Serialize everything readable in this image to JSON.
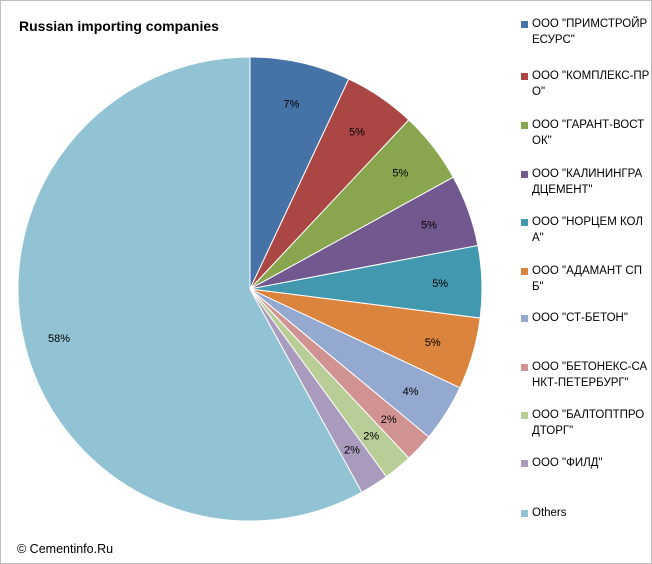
{
  "copyright": "© Cementinfo.Ru",
  "chart_data": {
    "type": "pie",
    "title": "Russian importing companies",
    "legend_position": "right",
    "slices": [
      {
        "name": "ООО \"ПРИМСТРОЙРЕСУРС\"",
        "value": 7,
        "label": "7%",
        "color": "#4572a7"
      },
      {
        "name": "ООО \"КОМПЛЕКС-ПРО\"",
        "value": 5,
        "label": "5%",
        "color": "#aa4643"
      },
      {
        "name": "ООО \"ГАРАНТ-ВОСТОК\"",
        "value": 5,
        "label": "5%",
        "color": "#89a54e"
      },
      {
        "name": "ООО \"КАЛИНИНГРАДЦЕМЕНТ\"",
        "value": 5,
        "label": "5%",
        "color": "#71588f"
      },
      {
        "name": "ООО \"НОРЦЕМ КОЛА\"",
        "value": 5,
        "label": "5%",
        "color": "#4198af"
      },
      {
        "name": "ООО \"АДАМАНТ СПБ\"",
        "value": 5,
        "label": "5%",
        "color": "#db843d"
      },
      {
        "name": "ООО \"СТ-БЕТОН\"",
        "value": 4,
        "label": "4%",
        "color": "#93a9cf"
      },
      {
        "name": "ООО \"БЕТОНЕКС-САНКТ-ПЕТЕРБУРГ\"",
        "value": 2,
        "label": "2%",
        "color": "#d19392"
      },
      {
        "name": "ООО \"БАЛТОПТПРОДТОРГ\"",
        "value": 2,
        "label": "2%",
        "color": "#b9cd96"
      },
      {
        "name": "ООО \"ФИЛД\"",
        "value": 2,
        "label": "2%",
        "color": "#a99bbd"
      },
      {
        "name": "Others",
        "value": 58,
        "label": "58%",
        "color": "#92c3d4"
      }
    ]
  }
}
